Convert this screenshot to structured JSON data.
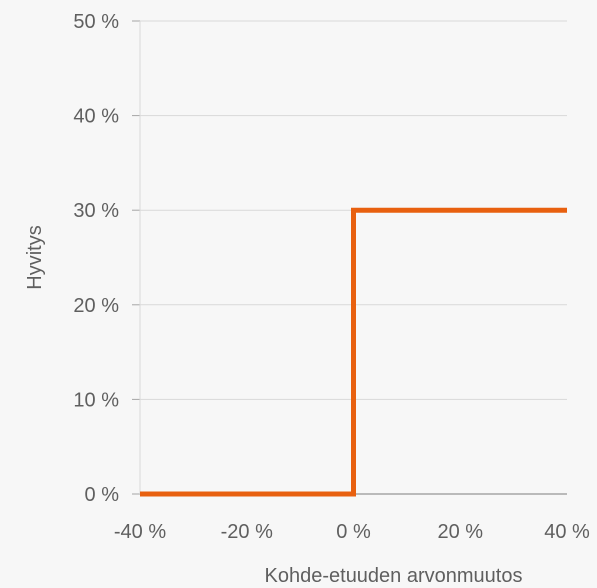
{
  "chart_data": {
    "type": "line",
    "step": true,
    "xlabel": "Kohde-etuuden arvonmuutos",
    "ylabel": "Hyvitys",
    "xlim": [
      -40,
      40
    ],
    "ylim": [
      0,
      50
    ],
    "x_ticks": [
      -40,
      -20,
      0,
      20,
      40
    ],
    "y_ticks": [
      0,
      10,
      20,
      30,
      40,
      50
    ],
    "x_tick_labels": [
      "-40 %",
      "-20 %",
      "0 %",
      "20 %",
      "40 %"
    ],
    "y_tick_labels": [
      "0 %",
      "10 %",
      "20 %",
      "30 %",
      "40 %",
      "50 %"
    ],
    "grid": {
      "horizontal": true,
      "vertical": false
    },
    "series": [
      {
        "color": "#e8600f",
        "points": [
          {
            "x": -40,
            "y": 0
          },
          {
            "x": 0,
            "y": 0
          },
          {
            "x": 0,
            "y": 30
          },
          {
            "x": 40,
            "y": 30
          }
        ]
      }
    ]
  },
  "colors": {
    "background": "#f7f7f7",
    "grid": "#d9d9d9",
    "axis": "#a6a6a6",
    "text": "#5f5f5f",
    "series": "#e8600f"
  }
}
